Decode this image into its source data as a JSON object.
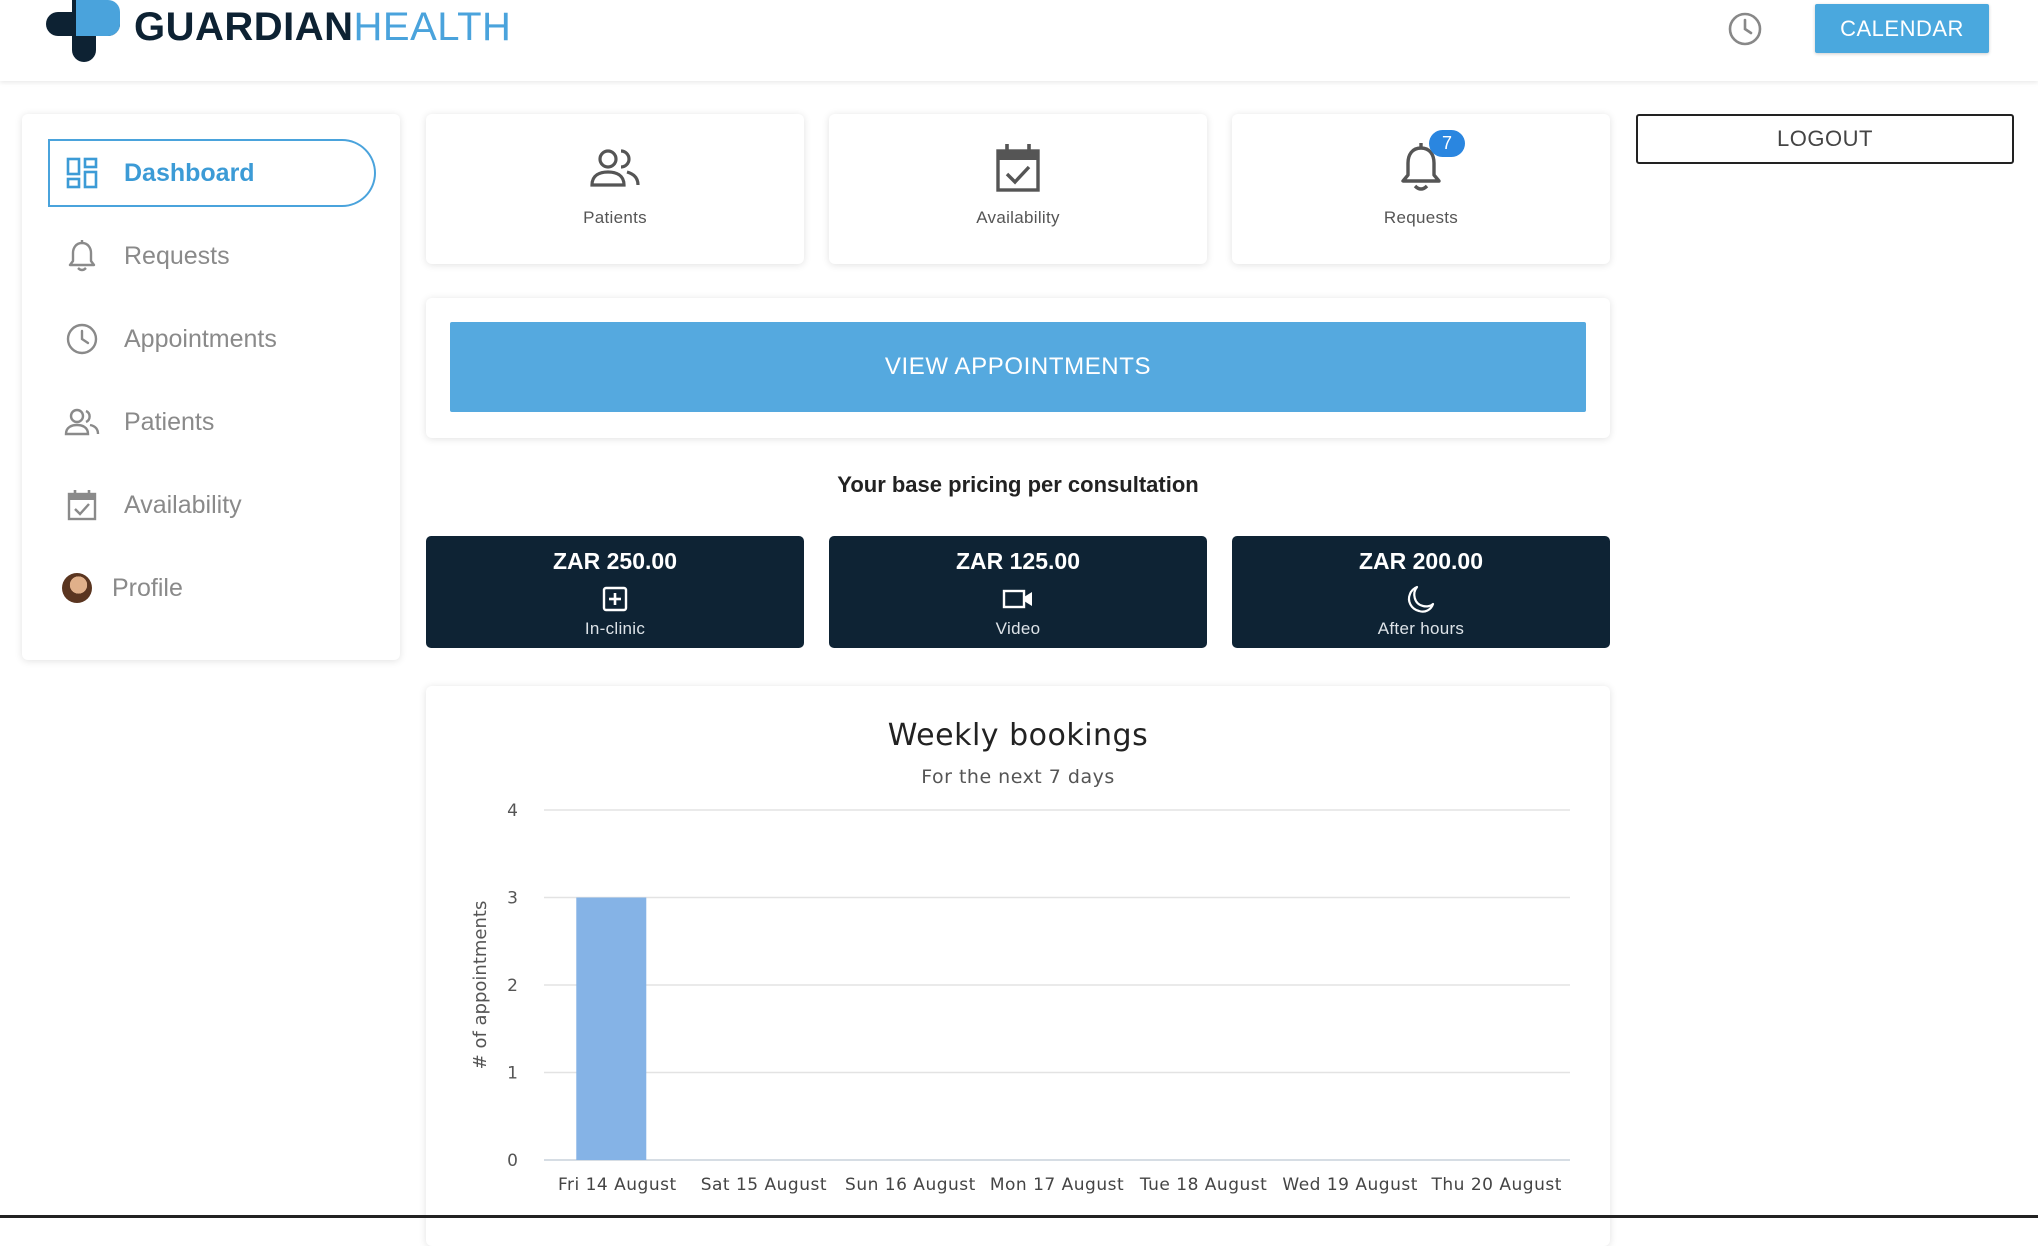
{
  "header": {
    "logo_bold": "GUARDIAN",
    "logo_light": "HEALTH",
    "calendar_label": "CALENDAR"
  },
  "sidebar": {
    "items": [
      {
        "label": "Dashboard",
        "icon": "dashboard-icon",
        "active": true
      },
      {
        "label": "Requests",
        "icon": "bell-icon"
      },
      {
        "label": "Appointments",
        "icon": "clock-icon"
      },
      {
        "label": "Patients",
        "icon": "people-icon"
      },
      {
        "label": "Availability",
        "icon": "calendar-check-icon"
      },
      {
        "label": "Profile",
        "icon": "avatar"
      }
    ]
  },
  "tiles": [
    {
      "label": "Patients",
      "icon": "people-icon"
    },
    {
      "label": "Availability",
      "icon": "calendar-check-icon"
    },
    {
      "label": "Requests",
      "icon": "bell-icon",
      "badge": "7"
    }
  ],
  "logout_label": "LOGOUT",
  "view_appointments_label": "VIEW APPOINTMENTS",
  "pricing": {
    "title": "Your base pricing per consultation",
    "items": [
      {
        "amount": "ZAR 250.00",
        "label": "In-clinic",
        "icon": "medical-plus-icon"
      },
      {
        "amount": "ZAR 125.00",
        "label": "Video",
        "icon": "video-camera-icon"
      },
      {
        "amount": "ZAR 200.00",
        "label": "After hours",
        "icon": "moon-icon"
      }
    ]
  },
  "colors": {
    "accent": "#4aa3dc",
    "navy": "#0e2334",
    "bar": "#85b3e6"
  },
  "chart_data": {
    "type": "bar",
    "title": "Weekly bookings",
    "subtitle": "For the next 7 days",
    "ylabel": "# of appointments",
    "xlabel": "",
    "categories": [
      "Fri 14 August",
      "Sat 15 August",
      "Sun 16 August",
      "Mon 17 August",
      "Tue 18 August",
      "Wed 19 August",
      "Thu 20 August"
    ],
    "values": [
      3,
      0,
      0,
      0,
      0,
      0,
      0
    ],
    "ylim": [
      0,
      4
    ],
    "yticks": [
      0,
      1,
      2,
      3,
      4
    ],
    "grid": true
  }
}
